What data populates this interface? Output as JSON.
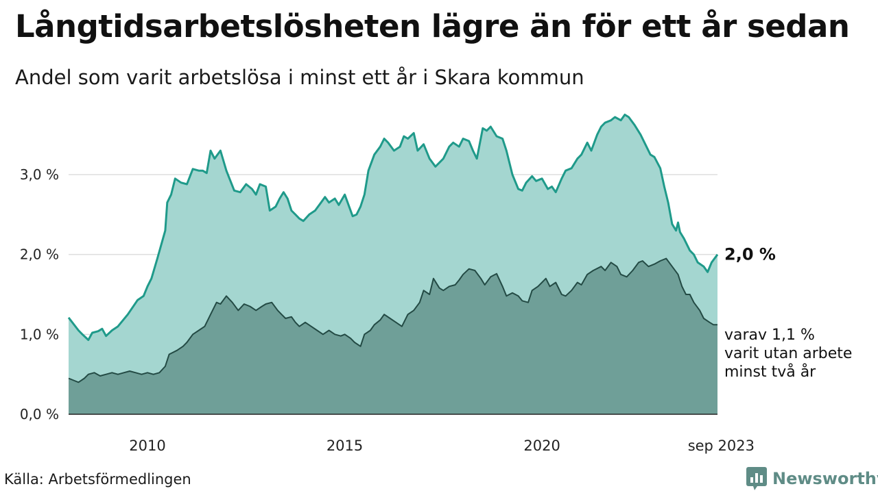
{
  "title": "Långtidsarbetslösheten lägre än för ett år sedan",
  "subtitle": "Andel som varit arbetslösa i minst ett år i Skara kommun",
  "source": "Källa: Arbetsförmedlingen",
  "brand": "Newsworthy",
  "colors": {
    "outer_line": "#1f9a8a",
    "outer_fill": "#a4d6d0",
    "inner_line": "#234a44",
    "inner_fill": "#6f9f98",
    "grid": "#dddddd"
  },
  "chart_data": {
    "type": "area",
    "x_range": [
      2008.0,
      2023.67
    ],
    "ylim": [
      0,
      3.9
    ],
    "y_ticks": [
      0,
      1,
      2,
      3
    ],
    "y_tick_labels": [
      "0,0 %",
      "1,0 %",
      "2,0 %",
      "3,0 %"
    ],
    "x_ticks": [
      2010,
      2015,
      2020,
      2023.67
    ],
    "x_tick_labels": [
      "2010",
      "2015",
      "2020",
      "sep 2023"
    ],
    "grid": true,
    "series": [
      {
        "name": "Arbetslösa minst ett år",
        "end_label": "2,0 %",
        "points": [
          [
            2008.0,
            1.21
          ],
          [
            2008.25,
            1.05
          ],
          [
            2008.35,
            1.0
          ],
          [
            2008.5,
            0.93
          ],
          [
            2008.6,
            1.02
          ],
          [
            2008.75,
            1.04
          ],
          [
            2008.85,
            1.07
          ],
          [
            2008.95,
            0.98
          ],
          [
            2009.1,
            1.05
          ],
          [
            2009.25,
            1.1
          ],
          [
            2009.5,
            1.25
          ],
          [
            2009.75,
            1.43
          ],
          [
            2009.9,
            1.48
          ],
          [
            2010.0,
            1.6
          ],
          [
            2010.1,
            1.7
          ],
          [
            2010.25,
            1.95
          ],
          [
            2010.45,
            2.3
          ],
          [
            2010.5,
            2.65
          ],
          [
            2010.6,
            2.75
          ],
          [
            2010.7,
            2.95
          ],
          [
            2010.85,
            2.9
          ],
          [
            2011.0,
            2.88
          ],
          [
            2011.15,
            3.07
          ],
          [
            2011.3,
            3.05
          ],
          [
            2011.4,
            3.05
          ],
          [
            2011.5,
            3.02
          ],
          [
            2011.6,
            3.3
          ],
          [
            2011.7,
            3.2
          ],
          [
            2011.85,
            3.3
          ],
          [
            2012.0,
            3.05
          ],
          [
            2012.2,
            2.8
          ],
          [
            2012.35,
            2.78
          ],
          [
            2012.5,
            2.88
          ],
          [
            2012.65,
            2.82
          ],
          [
            2012.75,
            2.75
          ],
          [
            2012.85,
            2.88
          ],
          [
            2013.0,
            2.85
          ],
          [
            2013.1,
            2.55
          ],
          [
            2013.25,
            2.6
          ],
          [
            2013.35,
            2.7
          ],
          [
            2013.45,
            2.78
          ],
          [
            2013.55,
            2.7
          ],
          [
            2013.65,
            2.55
          ],
          [
            2013.75,
            2.5
          ],
          [
            2013.85,
            2.45
          ],
          [
            2013.95,
            2.42
          ],
          [
            2014.1,
            2.5
          ],
          [
            2014.25,
            2.55
          ],
          [
            2014.4,
            2.65
          ],
          [
            2014.5,
            2.72
          ],
          [
            2014.6,
            2.65
          ],
          [
            2014.75,
            2.7
          ],
          [
            2014.85,
            2.62
          ],
          [
            2015.0,
            2.75
          ],
          [
            2015.2,
            2.48
          ],
          [
            2015.3,
            2.5
          ],
          [
            2015.4,
            2.6
          ],
          [
            2015.5,
            2.75
          ],
          [
            2015.6,
            3.05
          ],
          [
            2015.75,
            3.25
          ],
          [
            2015.9,
            3.35
          ],
          [
            2016.0,
            3.45
          ],
          [
            2016.1,
            3.4
          ],
          [
            2016.25,
            3.3
          ],
          [
            2016.4,
            3.35
          ],
          [
            2016.5,
            3.48
          ],
          [
            2016.6,
            3.45
          ],
          [
            2016.75,
            3.52
          ],
          [
            2016.85,
            3.3
          ],
          [
            2017.0,
            3.38
          ],
          [
            2017.15,
            3.2
          ],
          [
            2017.3,
            3.1
          ],
          [
            2017.5,
            3.2
          ],
          [
            2017.65,
            3.35
          ],
          [
            2017.75,
            3.4
          ],
          [
            2017.9,
            3.35
          ],
          [
            2018.0,
            3.45
          ],
          [
            2018.15,
            3.42
          ],
          [
            2018.25,
            3.3
          ],
          [
            2018.35,
            3.2
          ],
          [
            2018.5,
            3.58
          ],
          [
            2018.6,
            3.55
          ],
          [
            2018.7,
            3.6
          ],
          [
            2018.85,
            3.48
          ],
          [
            2019.0,
            3.45
          ],
          [
            2019.1,
            3.3
          ],
          [
            2019.25,
            3.0
          ],
          [
            2019.4,
            2.82
          ],
          [
            2019.5,
            2.8
          ],
          [
            2019.6,
            2.9
          ],
          [
            2019.75,
            2.98
          ],
          [
            2019.85,
            2.92
          ],
          [
            2020.0,
            2.95
          ],
          [
            2020.15,
            2.82
          ],
          [
            2020.25,
            2.85
          ],
          [
            2020.35,
            2.78
          ],
          [
            2020.5,
            2.95
          ],
          [
            2020.6,
            3.05
          ],
          [
            2020.75,
            3.08
          ],
          [
            2020.9,
            3.2
          ],
          [
            2021.0,
            3.25
          ],
          [
            2021.15,
            3.4
          ],
          [
            2021.25,
            3.3
          ],
          [
            2021.4,
            3.5
          ],
          [
            2021.5,
            3.6
          ],
          [
            2021.6,
            3.65
          ],
          [
            2021.75,
            3.68
          ],
          [
            2021.85,
            3.72
          ],
          [
            2022.0,
            3.68
          ],
          [
            2022.1,
            3.75
          ],
          [
            2022.2,
            3.72
          ],
          [
            2022.35,
            3.62
          ],
          [
            2022.5,
            3.5
          ],
          [
            2022.6,
            3.4
          ],
          [
            2022.75,
            3.25
          ],
          [
            2022.85,
            3.22
          ],
          [
            2023.0,
            3.08
          ],
          [
            2023.1,
            2.85
          ],
          [
            2023.2,
            2.65
          ],
          [
            2023.3,
            2.38
          ],
          [
            2023.4,
            2.3
          ],
          [
            2023.45,
            2.4
          ],
          [
            2023.5,
            2.28
          ],
          [
            2023.6,
            2.2
          ],
          [
            2023.75,
            2.05
          ],
          [
            2023.85,
            2.0
          ],
          [
            2023.95,
            1.9
          ],
          [
            2024.1,
            1.85
          ],
          [
            2024.2,
            1.78
          ],
          [
            2024.3,
            1.9
          ],
          [
            2024.45,
            2.0
          ]
        ]
      },
      {
        "name": "varav utan arbete minst två år",
        "end_label": [
          "varav 1,1 %",
          "varit utan arbete",
          "minst två år"
        ],
        "points": [
          [
            2008.0,
            0.45
          ],
          [
            2008.15,
            0.42
          ],
          [
            2008.25,
            0.4
          ],
          [
            2008.4,
            0.45
          ],
          [
            2008.5,
            0.5
          ],
          [
            2008.65,
            0.52
          ],
          [
            2008.8,
            0.48
          ],
          [
            2008.95,
            0.5
          ],
          [
            2009.1,
            0.52
          ],
          [
            2009.25,
            0.5
          ],
          [
            2009.4,
            0.52
          ],
          [
            2009.55,
            0.54
          ],
          [
            2009.7,
            0.52
          ],
          [
            2009.85,
            0.5
          ],
          [
            2010.0,
            0.52
          ],
          [
            2010.15,
            0.5
          ],
          [
            2010.3,
            0.52
          ],
          [
            2010.45,
            0.6
          ],
          [
            2010.55,
            0.75
          ],
          [
            2010.75,
            0.8
          ],
          [
            2010.9,
            0.85
          ],
          [
            2011.0,
            0.9
          ],
          [
            2011.15,
            1.0
          ],
          [
            2011.3,
            1.05
          ],
          [
            2011.45,
            1.1
          ],
          [
            2011.6,
            1.25
          ],
          [
            2011.75,
            1.4
          ],
          [
            2011.85,
            1.38
          ],
          [
            2012.0,
            1.48
          ],
          [
            2012.15,
            1.4
          ],
          [
            2012.3,
            1.3
          ],
          [
            2012.45,
            1.38
          ],
          [
            2012.6,
            1.35
          ],
          [
            2012.75,
            1.3
          ],
          [
            2012.9,
            1.35
          ],
          [
            2013.0,
            1.38
          ],
          [
            2013.15,
            1.4
          ],
          [
            2013.3,
            1.3
          ],
          [
            2013.4,
            1.25
          ],
          [
            2013.5,
            1.2
          ],
          [
            2013.65,
            1.22
          ],
          [
            2013.75,
            1.15
          ],
          [
            2013.85,
            1.1
          ],
          [
            2014.0,
            1.15
          ],
          [
            2014.15,
            1.1
          ],
          [
            2014.3,
            1.05
          ],
          [
            2014.45,
            1.0
          ],
          [
            2014.6,
            1.05
          ],
          [
            2014.75,
            1.0
          ],
          [
            2014.9,
            0.98
          ],
          [
            2015.0,
            1.0
          ],
          [
            2015.15,
            0.95
          ],
          [
            2015.25,
            0.9
          ],
          [
            2015.4,
            0.85
          ],
          [
            2015.5,
            1.0
          ],
          [
            2015.65,
            1.05
          ],
          [
            2015.75,
            1.12
          ],
          [
            2015.9,
            1.18
          ],
          [
            2016.0,
            1.25
          ],
          [
            2016.15,
            1.2
          ],
          [
            2016.3,
            1.15
          ],
          [
            2016.45,
            1.1
          ],
          [
            2016.6,
            1.25
          ],
          [
            2016.75,
            1.3
          ],
          [
            2016.9,
            1.4
          ],
          [
            2017.0,
            1.55
          ],
          [
            2017.15,
            1.5
          ],
          [
            2017.25,
            1.7
          ],
          [
            2017.4,
            1.58
          ],
          [
            2017.5,
            1.55
          ],
          [
            2017.65,
            1.6
          ],
          [
            2017.8,
            1.62
          ],
          [
            2017.9,
            1.68
          ],
          [
            2018.0,
            1.75
          ],
          [
            2018.15,
            1.82
          ],
          [
            2018.3,
            1.8
          ],
          [
            2018.45,
            1.7
          ],
          [
            2018.55,
            1.62
          ],
          [
            2018.7,
            1.72
          ],
          [
            2018.85,
            1.76
          ],
          [
            2019.0,
            1.6
          ],
          [
            2019.1,
            1.48
          ],
          [
            2019.25,
            1.52
          ],
          [
            2019.4,
            1.48
          ],
          [
            2019.5,
            1.42
          ],
          [
            2019.65,
            1.4
          ],
          [
            2019.75,
            1.55
          ],
          [
            2019.9,
            1.6
          ],
          [
            2020.0,
            1.65
          ],
          [
            2020.1,
            1.7
          ],
          [
            2020.2,
            1.6
          ],
          [
            2020.35,
            1.65
          ],
          [
            2020.5,
            1.5
          ],
          [
            2020.6,
            1.48
          ],
          [
            2020.75,
            1.55
          ],
          [
            2020.9,
            1.65
          ],
          [
            2021.0,
            1.62
          ],
          [
            2021.15,
            1.75
          ],
          [
            2021.3,
            1.8
          ],
          [
            2021.5,
            1.85
          ],
          [
            2021.6,
            1.8
          ],
          [
            2021.75,
            1.9
          ],
          [
            2021.9,
            1.85
          ],
          [
            2022.0,
            1.75
          ],
          [
            2022.15,
            1.72
          ],
          [
            2022.3,
            1.8
          ],
          [
            2022.45,
            1.9
          ],
          [
            2022.55,
            1.92
          ],
          [
            2022.7,
            1.85
          ],
          [
            2022.85,
            1.88
          ],
          [
            2023.0,
            1.92
          ],
          [
            2023.15,
            1.95
          ],
          [
            2023.3,
            1.85
          ],
          [
            2023.45,
            1.75
          ],
          [
            2023.55,
            1.6
          ],
          [
            2023.65,
            1.5
          ],
          [
            2023.75,
            1.5
          ],
          [
            2023.85,
            1.4
          ],
          [
            2024.0,
            1.3
          ],
          [
            2024.1,
            1.2
          ],
          [
            2024.25,
            1.15
          ],
          [
            2024.35,
            1.12
          ],
          [
            2024.45,
            1.12
          ]
        ]
      }
    ]
  }
}
